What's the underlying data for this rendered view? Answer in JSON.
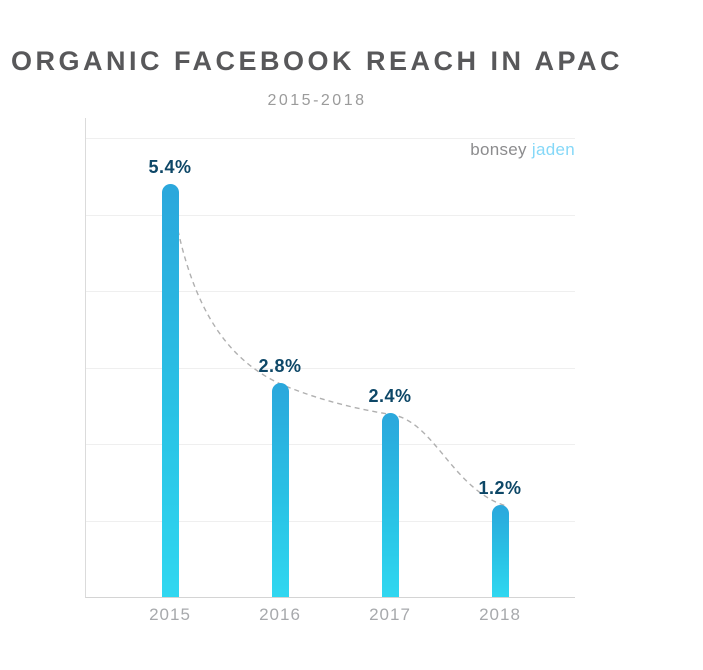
{
  "title": "ORGANIC FACEBOOK REACH IN APAC",
  "subtitle": "2015-2018",
  "logo": {
    "part1": "bonsey",
    "part2": "jaden"
  },
  "chart_data": {
    "type": "bar",
    "title": "ORGANIC FACEBOOK REACH IN APAC",
    "subtitle": "2015-2018",
    "categories": [
      "2015",
      "2016",
      "2017",
      "2018"
    ],
    "values": [
      5.4,
      2.8,
      2.4,
      1.2
    ],
    "value_labels": [
      "5.4%",
      "2.8%",
      "2.4%",
      "1.2%"
    ],
    "unit": "%",
    "xlabel": "",
    "ylabel": "",
    "ylim": [
      0,
      6
    ],
    "grid": "horizontal",
    "gridline_step": 1,
    "legend": "none",
    "annotations": "dashed gray trend curve through bar tops",
    "colors": {
      "bar_gradient_top": "#2BA7DC",
      "bar_gradient_bottom": "#30D7F0",
      "value_label": "#0D4767",
      "year_label": "#A7A9AC",
      "gridline": "#EFEFEF",
      "axis": "#D4D4D4",
      "trend_line": "#B0B0B0",
      "title": "#58585A",
      "subtitle": "#9B9B9B",
      "logo_gray": "#8C8C8E",
      "logo_blue": "#85D8F8"
    }
  }
}
